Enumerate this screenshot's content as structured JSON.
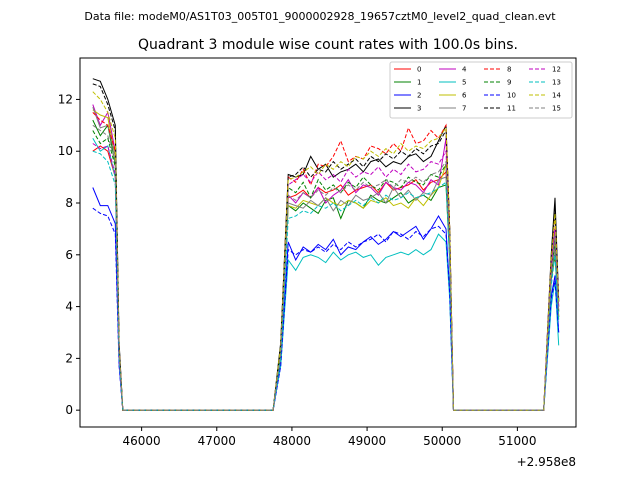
{
  "figure": {
    "suptitle": "Data file: modeM0/AS1T03_005T01_9000002928_19657cztM0_level2_quad_clean.evt",
    "x_offset_label": "+2.958e8"
  },
  "chart_data": {
    "type": "line",
    "title": "Quadrant 3 module wise count rates with 100.0s bins.",
    "xlabel": "",
    "ylabel": "",
    "xlim": [
      45180,
      51780
    ],
    "ylim": [
      -0.65,
      13.6
    ],
    "xticks": [
      46000,
      47000,
      48000,
      49000,
      50000,
      51000
    ],
    "yticks": [
      0,
      2,
      4,
      6,
      8,
      10,
      12
    ],
    "grid": false,
    "legend_position": "top-right",
    "legend_columns": 4,
    "x": [
      45350,
      45450,
      45550,
      45650,
      45700,
      45750,
      45850,
      47750,
      47850,
      47950,
      48050,
      48150,
      48250,
      48350,
      48450,
      48550,
      48650,
      48750,
      48850,
      48950,
      49050,
      49150,
      49250,
      49350,
      49450,
      49550,
      49650,
      49750,
      49850,
      49950,
      50050,
      50100,
      50150,
      51350,
      51450,
      51500,
      51550
    ],
    "series": [
      {
        "name": "0",
        "color": "#ff0000",
        "dash": "solid",
        "values": [
          10.0,
          10.2,
          10.0,
          9.0,
          2.0,
          0,
          0,
          0,
          2.0,
          8.2,
          8.3,
          8.5,
          8.2,
          8.6,
          8.4,
          8.5,
          8.7,
          8.3,
          8.5,
          8.6,
          8.7,
          8.4,
          8.8,
          8.5,
          8.6,
          8.7,
          8.9,
          8.5,
          8.8,
          8.9,
          9.2,
          6.0,
          0,
          0,
          5.0,
          6.5,
          4.0
        ]
      },
      {
        "name": "1",
        "color": "#008000",
        "dash": "solid",
        "values": [
          11.2,
          10.6,
          11.0,
          9.5,
          2.0,
          0,
          0,
          0,
          2.2,
          7.9,
          7.7,
          8.0,
          7.8,
          7.6,
          8.1,
          8.2,
          7.4,
          8.1,
          8.0,
          7.8,
          8.3,
          8.1,
          8.0,
          8.2,
          8.4,
          8.0,
          8.2,
          8.3,
          8.1,
          8.6,
          8.7,
          5.8,
          0,
          0,
          5.0,
          6.0,
          3.6
        ]
      },
      {
        "name": "2",
        "color": "#0000ff",
        "dash": "solid",
        "values": [
          8.6,
          7.9,
          7.9,
          7.2,
          1.8,
          0,
          0,
          0,
          1.8,
          6.5,
          5.8,
          6.3,
          6.1,
          6.4,
          6.2,
          6.6,
          6.0,
          6.3,
          6.2,
          6.5,
          6.7,
          6.4,
          6.6,
          6.9,
          6.7,
          6.9,
          7.1,
          6.6,
          7.0,
          7.5,
          7.0,
          4.6,
          0,
          0,
          4.4,
          5.2,
          3.0
        ]
      },
      {
        "name": "3",
        "color": "#000000",
        "dash": "solid",
        "values": [
          12.8,
          12.7,
          12.0,
          11.0,
          2.6,
          0,
          0,
          0,
          2.6,
          9.1,
          9.0,
          9.1,
          9.8,
          9.3,
          9.5,
          9.0,
          9.2,
          9.3,
          9.5,
          9.2,
          9.6,
          9.7,
          9.4,
          9.6,
          9.5,
          9.8,
          9.9,
          9.6,
          9.8,
          10.4,
          11.0,
          7.0,
          0,
          0,
          6.0,
          8.2,
          4.2
        ]
      },
      {
        "name": "4",
        "color": "#bf00bf",
        "dash": "solid",
        "values": [
          11.8,
          11.0,
          11.5,
          10.0,
          2.3,
          0,
          0,
          0,
          2.3,
          8.3,
          8.0,
          8.4,
          8.2,
          8.6,
          8.0,
          8.3,
          8.5,
          8.9,
          8.4,
          8.7,
          8.6,
          8.3,
          8.8,
          8.6,
          8.5,
          8.8,
          8.7,
          8.4,
          8.9,
          8.7,
          10.5,
          6.5,
          0,
          0,
          5.5,
          7.0,
          3.8
        ]
      },
      {
        "name": "5",
        "color": "#00bfbf",
        "dash": "solid",
        "values": [
          10.5,
          10.0,
          10.2,
          9.0,
          2.0,
          0,
          0,
          0,
          1.7,
          5.8,
          5.4,
          5.9,
          6.0,
          5.9,
          5.7,
          6.1,
          5.8,
          6.0,
          6.1,
          5.9,
          6.0,
          5.6,
          5.9,
          6.0,
          6.1,
          6.0,
          6.2,
          6.0,
          6.2,
          6.8,
          6.5,
          4.3,
          0,
          0,
          4.0,
          5.0,
          2.5
        ]
      },
      {
        "name": "6",
        "color": "#bfbf00",
        "dash": "solid",
        "values": [
          11.6,
          11.4,
          11.3,
          9.8,
          2.2,
          0,
          0,
          0,
          2.2,
          7.9,
          7.8,
          8.1,
          8.0,
          7.9,
          8.2,
          8.0,
          7.9,
          8.1,
          8.0,
          7.8,
          8.1,
          8.0,
          8.2,
          7.9,
          8.0,
          7.8,
          8.2,
          7.9,
          8.3,
          8.6,
          9.5,
          6.0,
          0,
          0,
          5.2,
          6.5,
          3.6
        ]
      },
      {
        "name": "7",
        "color": "#808080",
        "dash": "solid",
        "values": [
          11.7,
          10.9,
          11.0,
          9.8,
          2.1,
          0,
          0,
          0,
          2.1,
          8.0,
          7.9,
          7.8,
          8.1,
          7.9,
          8.2,
          7.7,
          8.1,
          7.9,
          8.3,
          8.1,
          8.2,
          8.4,
          8.0,
          8.6,
          8.2,
          8.5,
          8.1,
          8.4,
          8.3,
          8.9,
          9.0,
          5.9,
          0,
          0,
          5.0,
          6.3,
          3.5
        ]
      },
      {
        "name": "8",
        "color": "#ff0000",
        "dash": "dashed",
        "values": [
          11.5,
          11.2,
          11.0,
          10.0,
          2.4,
          0,
          0,
          0,
          2.4,
          9.0,
          8.8,
          9.3,
          8.7,
          9.5,
          9.4,
          9.8,
          10.4,
          9.6,
          9.8,
          9.7,
          10.2,
          10.1,
          9.9,
          10.3,
          10.0,
          10.9,
          10.3,
          10.4,
          10.8,
          10.5,
          11.0,
          7.0,
          0,
          0,
          5.8,
          7.5,
          4.2
        ]
      },
      {
        "name": "9",
        "color": "#008000",
        "dash": "dashed",
        "values": [
          10.8,
          10.3,
          10.5,
          9.4,
          2.2,
          0,
          0,
          0,
          2.2,
          8.6,
          8.4,
          8.8,
          8.2,
          8.9,
          8.5,
          8.7,
          8.4,
          8.8,
          8.6,
          9.0,
          8.7,
          8.5,
          8.9,
          8.8,
          8.6,
          9.0,
          8.8,
          8.7,
          9.1,
          9.0,
          9.5,
          6.2,
          0,
          0,
          5.2,
          6.6,
          3.8
        ]
      },
      {
        "name": "10",
        "color": "#0000ff",
        "dash": "dashed",
        "values": [
          7.8,
          7.6,
          7.5,
          6.8,
          1.7,
          0,
          0,
          0,
          1.7,
          6.2,
          6.0,
          6.2,
          6.1,
          6.3,
          6.1,
          6.4,
          6.2,
          6.5,
          6.3,
          6.5,
          6.6,
          6.8,
          6.5,
          6.9,
          6.8,
          6.6,
          6.9,
          6.7,
          7.0,
          7.1,
          6.8,
          4.5,
          0,
          0,
          4.3,
          5.0,
          3.0
        ]
      },
      {
        "name": "11",
        "color": "#000000",
        "dash": "dashed",
        "values": [
          12.6,
          12.5,
          11.8,
          10.8,
          2.5,
          0,
          0,
          0,
          2.5,
          9.0,
          9.1,
          9.4,
          9.0,
          9.3,
          9.2,
          9.6,
          9.3,
          9.5,
          9.7,
          9.4,
          9.8,
          9.6,
          9.9,
          9.7,
          10.0,
          9.8,
          10.1,
          9.9,
          10.2,
          10.3,
          10.8,
          7.0,
          0,
          0,
          5.8,
          7.8,
          4.2
        ]
      },
      {
        "name": "12",
        "color": "#bf00bf",
        "dash": "dashed",
        "values": [
          10.3,
          10.1,
          10.2,
          9.1,
          2.1,
          0,
          0,
          0,
          2.3,
          8.7,
          8.9,
          9.1,
          8.8,
          9.2,
          8.9,
          9.1,
          8.8,
          9.3,
          9.0,
          9.2,
          9.1,
          9.4,
          9.0,
          9.3,
          9.1,
          9.5,
          9.2,
          9.3,
          9.6,
          9.5,
          10.0,
          6.4,
          0,
          0,
          5.5,
          7.0,
          4.0
        ]
      },
      {
        "name": "13",
        "color": "#00bfbf",
        "dash": "dashed",
        "values": [
          10.0,
          9.9,
          9.6,
          8.7,
          2.0,
          0,
          0,
          0,
          2.0,
          7.4,
          7.5,
          7.7,
          7.6,
          7.9,
          7.8,
          8.0,
          7.7,
          7.9,
          8.1,
          7.9,
          8.2,
          8.0,
          8.3,
          8.1,
          8.2,
          8.4,
          8.2,
          8.3,
          8.4,
          8.6,
          8.8,
          5.8,
          0,
          0,
          4.8,
          6.0,
          3.4
        ]
      },
      {
        "name": "14",
        "color": "#bfbf00",
        "dash": "dashed",
        "values": [
          12.3,
          12.0,
          11.5,
          10.5,
          2.4,
          0,
          0,
          0,
          2.5,
          8.9,
          9.0,
          9.2,
          9.4,
          9.1,
          9.5,
          9.3,
          9.6,
          9.4,
          9.8,
          9.7,
          10.0,
          9.8,
          10.1,
          9.9,
          10.3,
          10.0,
          10.2,
          10.1,
          10.4,
          10.5,
          10.9,
          7.0,
          0,
          0,
          5.8,
          7.6,
          4.1
        ]
      },
      {
        "name": "15",
        "color": "#808080",
        "dash": "dashed",
        "values": [
          11.0,
          10.8,
          10.6,
          9.6,
          2.2,
          0,
          0,
          0,
          2.2,
          8.3,
          8.1,
          8.4,
          8.2,
          8.5,
          8.3,
          8.6,
          8.4,
          8.7,
          8.5,
          8.8,
          8.6,
          8.7,
          8.9,
          8.6,
          8.9,
          8.8,
          9.0,
          8.8,
          9.1,
          9.2,
          9.6,
          6.3,
          0,
          0,
          5.2,
          6.8,
          3.8
        ]
      }
    ]
  }
}
